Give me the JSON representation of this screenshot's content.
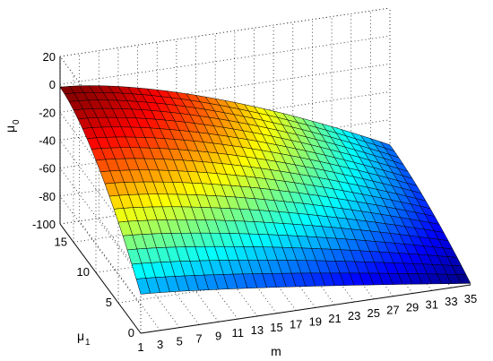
{
  "chart_data": {
    "type": "surface",
    "title": "",
    "xlabel": "m",
    "ylabel": "μ",
    "ylabel_sub": "1",
    "zlabel": "μ",
    "zlabel_sub": "0",
    "xlim": [
      1,
      35
    ],
    "ylim": [
      0,
      18
    ],
    "zlim": [
      -100,
      20
    ],
    "x_ticks": [
      "1",
      "3",
      "5",
      "7",
      "9",
      "11",
      "13",
      "15",
      "17",
      "19",
      "21",
      "23",
      "25",
      "27",
      "29",
      "31",
      "33",
      "35"
    ],
    "y_ticks": [
      "0",
      "5",
      "10",
      "15"
    ],
    "z_ticks": [
      "20",
      "0",
      "-20",
      "-40",
      "-60",
      "-80",
      "-100"
    ],
    "grid": true,
    "colormap": "jet",
    "surface": {
      "x_range": [
        1,
        35
      ],
      "y_range": [
        0,
        18
      ],
      "corner_values": {
        "m1_mu1_18": -2,
        "m1_mu1_0": -72,
        "m35_mu1_18": -78,
        "m35_mu1_0": -99
      }
    }
  }
}
